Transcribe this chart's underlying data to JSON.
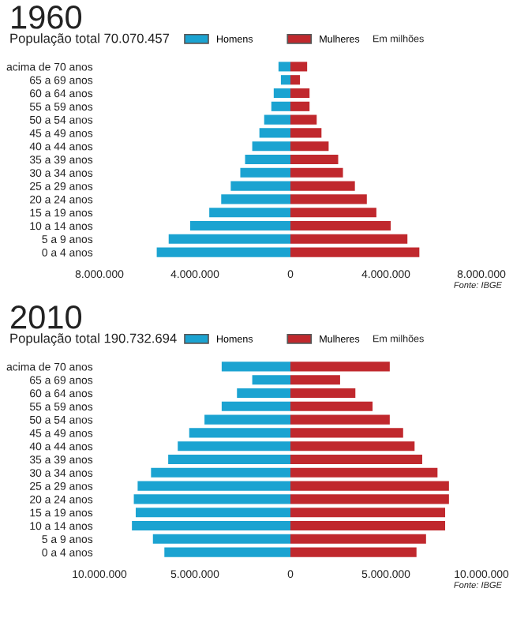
{
  "chart_data": [
    {
      "type": "bar",
      "orientation": "horizontal",
      "stacked": true,
      "title": "1960",
      "subtitle": "População total 70.070.457",
      "annotations": [
        "Em milhões",
        "Fonte: IBGE"
      ],
      "legend": "top",
      "grid": false,
      "categories": [
        "acima de 70 anos",
        "65 a 69 anos",
        "60 a 64 anos",
        "55 a 59 anos",
        "50 a 54 anos",
        "45 a 49 anos",
        "40 a 44 anos",
        "35 a 39 anos",
        "30 a 34 anos",
        "25 a 29 anos",
        "20 a 24 anos",
        "15 a 19 anos",
        "10 a 14 anos",
        "5 a 9 anos",
        "0 a 4 anos"
      ],
      "xlim": [
        -8000000,
        8000000
      ],
      "xticks": [
        {
          "value": -8000000,
          "label": "8.000.000"
        },
        {
          "value": -4000000,
          "label": "4.000.000"
        },
        0,
        {
          "value": 4000000,
          "label": "4.000.000"
        },
        {
          "value": 8000000,
          "label": "8.000.000"
        }
      ],
      "series": [
        {
          "name": "Homens",
          "color": "#1ba3d1",
          "values": [
            -500000,
            -400000,
            -700000,
            -800000,
            -1100000,
            -1300000,
            -1600000,
            -1900000,
            -2100000,
            -2500000,
            -2900000,
            -3400000,
            -4200000,
            -5100000,
            -5600000
          ]
        },
        {
          "name": "Mulheres",
          "color": "#c0282d",
          "values": [
            700000,
            400000,
            800000,
            800000,
            1100000,
            1300000,
            1600000,
            2000000,
            2200000,
            2700000,
            3200000,
            3600000,
            4200000,
            4900000,
            5400000
          ]
        }
      ]
    },
    {
      "type": "bar",
      "orientation": "horizontal",
      "stacked": true,
      "title": "2010",
      "subtitle": "População total 190.732.694",
      "annotations": [
        "Em milhões",
        "Fonte: IBGE"
      ],
      "legend": "top",
      "grid": false,
      "categories": [
        "acima de 70 anos",
        "65 a 69 anos",
        "60 a 64 anos",
        "55 a 59 anos",
        "50 a 54 anos",
        "45 a 49 anos",
        "40 a 44 anos",
        "35 a 39 anos",
        "30 a 34 anos",
        "25 a 29 anos",
        "20 a 24 anos",
        "15 a 19 anos",
        "10 a 14 anos",
        "5 a 9 anos",
        "0 a 4 anos"
      ],
      "xlim": [
        -10000000,
        10000000
      ],
      "xticks": [
        {
          "value": -10000000,
          "label": "10.000.000"
        },
        {
          "value": -5000000,
          "label": "5.000.000"
        },
        0,
        {
          "value": 5000000,
          "label": "5.000.000"
        },
        {
          "value": 10000000,
          "label": "10.000.000"
        }
      ],
      "series": [
        {
          "name": "Homens",
          "color": "#1ba3d1",
          "values": [
            -3600000,
            -2000000,
            -2800000,
            -3600000,
            -4500000,
            -5300000,
            -5900000,
            -6400000,
            -7300000,
            -8000000,
            -8200000,
            -8100000,
            -8300000,
            -7200000,
            -6600000
          ]
        },
        {
          "name": "Mulheres",
          "color": "#c0282d",
          "values": [
            5200000,
            2600000,
            3400000,
            4300000,
            5200000,
            5900000,
            6500000,
            6900000,
            7700000,
            8300000,
            8300000,
            8100000,
            8100000,
            7100000,
            6600000
          ]
        }
      ]
    }
  ]
}
